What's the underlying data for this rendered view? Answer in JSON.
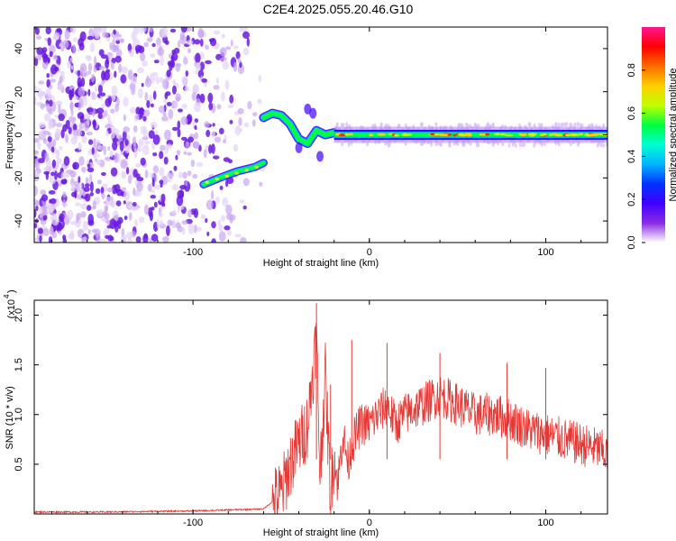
{
  "title": "C2E4.2025.055.20.46.G10",
  "chart_data": [
    {
      "type": "heatmap",
      "title": "C2E4.2025.055.20.46.G10",
      "xlabel": "Height of straight line (km)",
      "ylabel": "Frequency (Hz)",
      "xlim": [
        -190,
        135
      ],
      "ylim": [
        -50,
        50
      ],
      "xticks": [
        -100,
        0,
        100
      ],
      "yticks": [
        -40,
        -20,
        0,
        20,
        40
      ],
      "colorbar": {
        "label": "Normalized spectral amplitude",
        "range": [
          0,
          1
        ],
        "ticks": [
          0.0,
          0.2,
          0.4,
          0.6,
          0.8
        ],
        "tick_labels": [
          "0.0",
          "0.2",
          "0.4",
          "0.6",
          "0.8"
        ],
        "colormap": [
          "#ffffff",
          "#8a2be2",
          "#3f00ff",
          "#0033ff",
          "#00b4ff",
          "#00ffd0",
          "#00ff40",
          "#c0ff00",
          "#ffd000",
          "#ff6a00",
          "#ff0000",
          "#ff1493"
        ]
      },
      "traces": [
        {
          "name": "noise",
          "x_range": [
            -190,
            -60
          ],
          "y_range": [
            -50,
            50
          ],
          "amplitude": 0.1
        },
        {
          "name": "early-band",
          "x": [
            -94,
            -85,
            -75,
            -65,
            -60
          ],
          "y": [
            -23,
            -20,
            -17,
            -15,
            -13
          ],
          "amplitude": 0.55
        },
        {
          "name": "arc",
          "x": [
            -60,
            -55,
            -50,
            -45,
            -40,
            -35,
            -30,
            -25,
            -20
          ],
          "y": [
            8,
            10,
            9,
            5,
            -2,
            -4,
            2,
            0,
            1
          ],
          "amplitude": 0.6
        },
        {
          "name": "main-band",
          "x_range": [
            -20,
            135
          ],
          "y": 0,
          "amplitude": 0.85
        }
      ]
    },
    {
      "type": "line",
      "xlabel": "Height of straight line (km)",
      "ylabel": "SNR (10 * v/v)",
      "y_multiplier_label": "(x10",
      "y_multiplier_exp": "4",
      "xlim": [
        -190,
        135
      ],
      "ylim": [
        0,
        2.15
      ],
      "xticks": [
        -100,
        0,
        100
      ],
      "yticks": [
        0.5,
        1.0,
        1.5,
        2.0
      ],
      "ytick_labels": [
        "0.5",
        "1.0",
        "1.5",
        "2.0"
      ],
      "series": [
        {
          "color": "#e53935",
          "x": [
            -190,
            -150,
            -100,
            -80,
            -60,
            -50,
            -45,
            -40,
            -35,
            -30,
            -28,
            -25,
            -22,
            -20,
            -18,
            -15,
            -12,
            -10,
            -5,
            0,
            5,
            10,
            15,
            20,
            30,
            40,
            50,
            60,
            70,
            80,
            90,
            100,
            110,
            120,
            130,
            135
          ],
          "y": [
            0.02,
            0.02,
            0.03,
            0.04,
            0.05,
            0.2,
            0.5,
            0.7,
            0.9,
            1.8,
            0.4,
            1.4,
            0.2,
            0.6,
            0.3,
            0.8,
            0.5,
            0.7,
            0.9,
            0.9,
            1.0,
            1.1,
            0.9,
            1.0,
            1.1,
            1.2,
            1.1,
            1.0,
            1.0,
            0.95,
            0.85,
            0.8,
            0.75,
            0.7,
            0.65,
            0.6
          ]
        }
      ]
    }
  ]
}
